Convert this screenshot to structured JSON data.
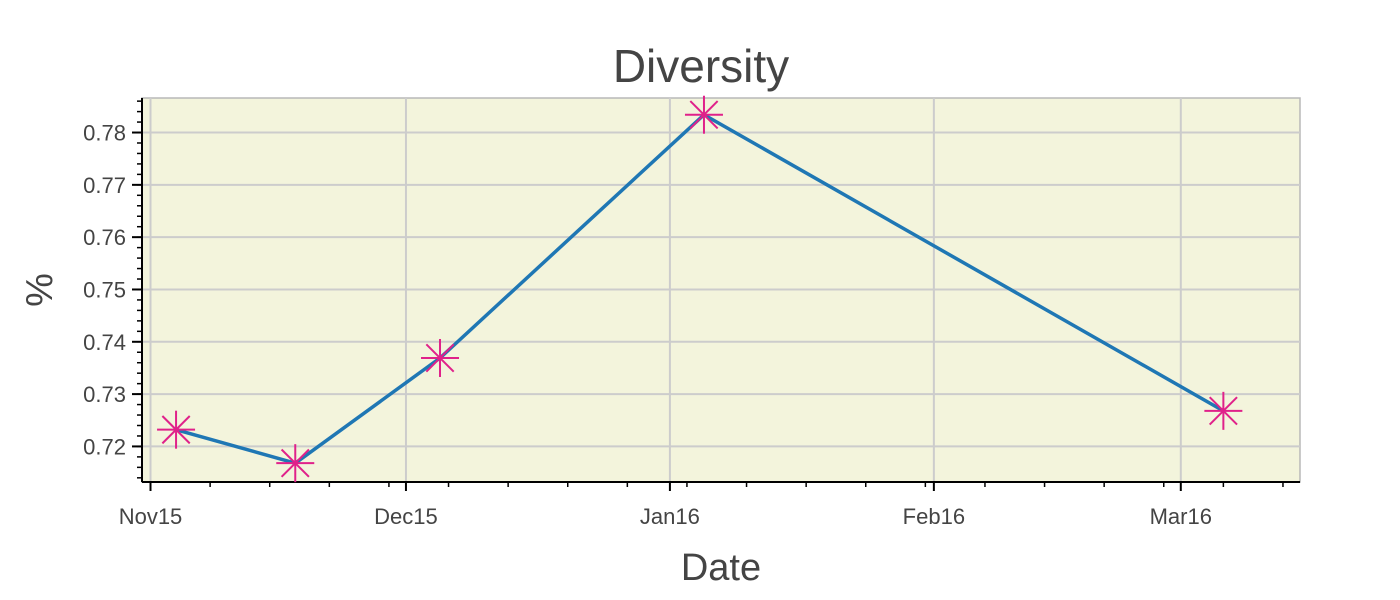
{
  "chart_data": {
    "type": "line",
    "title": "Diversity",
    "xlabel": "Date",
    "ylabel": "%",
    "x_type": "datetime",
    "x": [
      "2015-11-04",
      "2015-11-18",
      "2015-12-05",
      "2016-01-05",
      "2016-03-06"
    ],
    "series": [
      {
        "name": "",
        "values": [
          0.7232,
          0.7168,
          0.7369,
          0.7834,
          0.7268
        ],
        "color": "#1f77b4",
        "marker": "asterisk",
        "marker_color": "#e0218a"
      }
    ],
    "xlim": [
      "2015-10-31",
      "2016-03-15"
    ],
    "ylim": [
      0.7132,
      0.7866
    ],
    "x_ticks": [
      {
        "date": "2015-11-01",
        "label": "Nov15"
      },
      {
        "date": "2015-12-01",
        "label": "Dec15"
      },
      {
        "date": "2016-01-01",
        "label": "Jan16"
      },
      {
        "date": "2016-02-01",
        "label": "Feb16"
      },
      {
        "date": "2016-03-01",
        "label": "Mar16"
      }
    ],
    "y_ticks": [
      0.72,
      0.73,
      0.74,
      0.75,
      0.76,
      0.77,
      0.78
    ],
    "y_tick_labels": [
      "0.72",
      "0.73",
      "0.74",
      "0.75",
      "0.76",
      "0.77",
      "0.78"
    ],
    "plot_background": "#f3f4dc",
    "grid": true
  }
}
